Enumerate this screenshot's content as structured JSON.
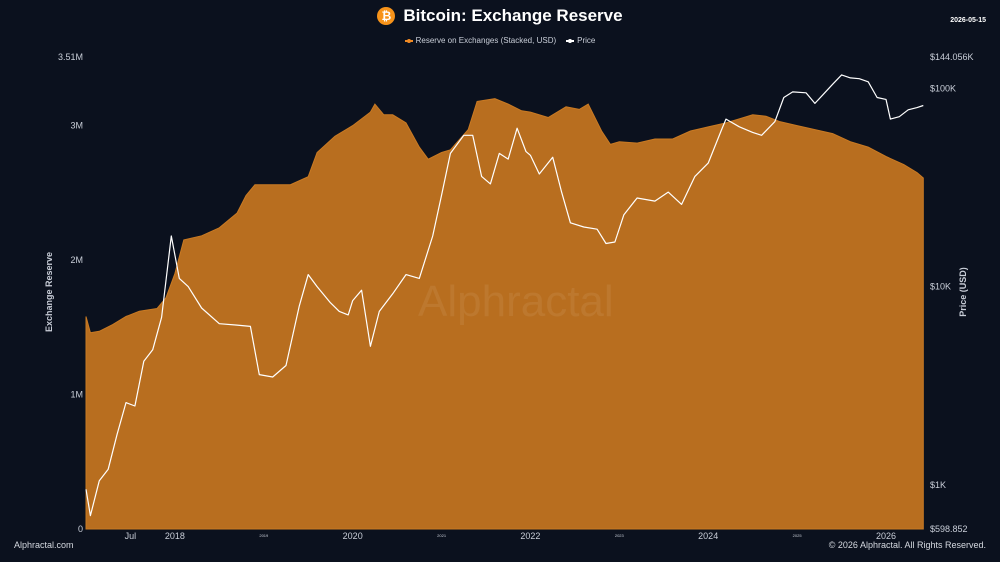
{
  "header": {
    "title": "Bitcoin: Exchange Reserve",
    "date": "2026-05-15",
    "icon": "bitcoin-icon",
    "icon_glyph": "₿"
  },
  "legend": [
    {
      "label": "Reserve on Exchanges (Stacked, USD)",
      "color": "#f08a24"
    },
    {
      "label": "Price",
      "color": "#ffffff"
    }
  ],
  "watermark": "Alphractal",
  "footer": {
    "left": "Alphractal.com",
    "right": "© 2026 Alphractal. All Rights Reserved."
  },
  "chart_data": {
    "type": "area",
    "xlim": [
      2017.0,
      2026.45
    ],
    "x_ticks": [
      {
        "x": 2017.5,
        "label": "Jul"
      },
      {
        "x": 2018.0,
        "label": "2018"
      },
      {
        "x": 2019.0,
        "label": "2019"
      },
      {
        "x": 2020.0,
        "label": "2020"
      },
      {
        "x": 2021.0,
        "label": "2021"
      },
      {
        "x": 2022.0,
        "label": "2022"
      },
      {
        "x": 2023.0,
        "label": "2023"
      },
      {
        "x": 2024.0,
        "label": "2024"
      },
      {
        "x": 2025.0,
        "label": "2025"
      },
      {
        "x": 2026.0,
        "label": "2026"
      }
    ],
    "ylabel_left": "Exchange Reserve",
    "ylim_left": [
      0,
      3510000
    ],
    "left_ticks": [
      {
        "value": 0,
        "label": "0"
      },
      {
        "value": 1000000,
        "label": "1M"
      },
      {
        "value": 2000000,
        "label": "2M"
      },
      {
        "value": 3000000,
        "label": "3M"
      },
      {
        "value": 3510000,
        "label": "3.51M"
      }
    ],
    "ylabel_right": "Price (USD)",
    "right_scale": "log",
    "ylim_right": [
      598.852,
      144056
    ],
    "right_ticks": [
      {
        "value": 598.852,
        "label": "$598.852"
      },
      {
        "value": 1000,
        "label": "$1K"
      },
      {
        "value": 10000,
        "label": "$10K"
      },
      {
        "value": 100000,
        "label": "$100K"
      },
      {
        "value": 144056,
        "label": "$144.056K"
      }
    ],
    "series": [
      {
        "name": "Reserve on Exchanges (Stacked, USD)",
        "axis": "left",
        "color": "#f08a24",
        "points": [
          [
            2017.0,
            1580000
          ],
          [
            2017.05,
            1460000
          ],
          [
            2017.15,
            1470000
          ],
          [
            2017.3,
            1520000
          ],
          [
            2017.45,
            1580000
          ],
          [
            2017.6,
            1620000
          ],
          [
            2017.8,
            1640000
          ],
          [
            2017.9,
            1720000
          ],
          [
            2018.0,
            1900000
          ],
          [
            2018.1,
            2150000
          ],
          [
            2018.3,
            2180000
          ],
          [
            2018.5,
            2240000
          ],
          [
            2018.7,
            2350000
          ],
          [
            2018.8,
            2480000
          ],
          [
            2018.9,
            2560000
          ],
          [
            2019.1,
            2560000
          ],
          [
            2019.3,
            2560000
          ],
          [
            2019.5,
            2620000
          ],
          [
            2019.6,
            2800000
          ],
          [
            2019.8,
            2920000
          ],
          [
            2020.0,
            3000000
          ],
          [
            2020.2,
            3100000
          ],
          [
            2020.25,
            3160000
          ],
          [
            2020.35,
            3080000
          ],
          [
            2020.45,
            3080000
          ],
          [
            2020.6,
            3020000
          ],
          [
            2020.75,
            2840000
          ],
          [
            2020.85,
            2750000
          ],
          [
            2021.0,
            2800000
          ],
          [
            2021.1,
            2820000
          ],
          [
            2021.3,
            2970000
          ],
          [
            2021.4,
            3180000
          ],
          [
            2021.6,
            3200000
          ],
          [
            2021.75,
            3160000
          ],
          [
            2021.9,
            3110000
          ],
          [
            2022.0,
            3100000
          ],
          [
            2022.2,
            3060000
          ],
          [
            2022.4,
            3140000
          ],
          [
            2022.55,
            3120000
          ],
          [
            2022.65,
            3160000
          ],
          [
            2022.8,
            2960000
          ],
          [
            2022.9,
            2860000
          ],
          [
            2023.0,
            2880000
          ],
          [
            2023.2,
            2870000
          ],
          [
            2023.4,
            2900000
          ],
          [
            2023.6,
            2900000
          ],
          [
            2023.8,
            2960000
          ],
          [
            2024.0,
            2990000
          ],
          [
            2024.2,
            3020000
          ],
          [
            2024.35,
            3050000
          ],
          [
            2024.5,
            3080000
          ],
          [
            2024.65,
            3070000
          ],
          [
            2024.8,
            3030000
          ],
          [
            2025.0,
            3000000
          ],
          [
            2025.2,
            2970000
          ],
          [
            2025.4,
            2940000
          ],
          [
            2025.6,
            2880000
          ],
          [
            2025.8,
            2840000
          ],
          [
            2026.0,
            2770000
          ],
          [
            2026.2,
            2710000
          ],
          [
            2026.35,
            2650000
          ],
          [
            2026.42,
            2610000
          ]
        ]
      },
      {
        "name": "Price",
        "axis": "right",
        "color": "#ffffff",
        "points": [
          [
            2017.0,
            950
          ],
          [
            2017.05,
            700
          ],
          [
            2017.15,
            1050
          ],
          [
            2017.25,
            1200
          ],
          [
            2017.35,
            1800
          ],
          [
            2017.45,
            2600
          ],
          [
            2017.55,
            2500
          ],
          [
            2017.65,
            4200
          ],
          [
            2017.75,
            4800
          ],
          [
            2017.85,
            7000
          ],
          [
            2017.96,
            18000
          ],
          [
            2018.05,
            11000
          ],
          [
            2018.15,
            10000
          ],
          [
            2018.3,
            7800
          ],
          [
            2018.5,
            6500
          ],
          [
            2018.7,
            6400
          ],
          [
            2018.85,
            6300
          ],
          [
            2018.95,
            3600
          ],
          [
            2019.1,
            3500
          ],
          [
            2019.25,
            4000
          ],
          [
            2019.4,
            8000
          ],
          [
            2019.5,
            11500
          ],
          [
            2019.6,
            10000
          ],
          [
            2019.75,
            8300
          ],
          [
            2019.85,
            7500
          ],
          [
            2019.95,
            7200
          ],
          [
            2020.0,
            8500
          ],
          [
            2020.1,
            9600
          ],
          [
            2020.2,
            5000
          ],
          [
            2020.3,
            7500
          ],
          [
            2020.45,
            9200
          ],
          [
            2020.6,
            11500
          ],
          [
            2020.75,
            11000
          ],
          [
            2020.9,
            18000
          ],
          [
            2021.0,
            29000
          ],
          [
            2021.1,
            47000
          ],
          [
            2021.25,
            58000
          ],
          [
            2021.35,
            58000
          ],
          [
            2021.45,
            36000
          ],
          [
            2021.55,
            33000
          ],
          [
            2021.65,
            47000
          ],
          [
            2021.75,
            44000
          ],
          [
            2021.85,
            63000
          ],
          [
            2021.95,
            48000
          ],
          [
            2022.0,
            46000
          ],
          [
            2022.1,
            37000
          ],
          [
            2022.25,
            45000
          ],
          [
            2022.35,
            30000
          ],
          [
            2022.45,
            21000
          ],
          [
            2022.6,
            20000
          ],
          [
            2022.75,
            19500
          ],
          [
            2022.85,
            16500
          ],
          [
            2022.95,
            16800
          ],
          [
            2023.05,
            23000
          ],
          [
            2023.2,
            28000
          ],
          [
            2023.4,
            27000
          ],
          [
            2023.55,
            30000
          ],
          [
            2023.7,
            26000
          ],
          [
            2023.85,
            36000
          ],
          [
            2024.0,
            42000
          ],
          [
            2024.15,
            62000
          ],
          [
            2024.2,
            70000
          ],
          [
            2024.35,
            64000
          ],
          [
            2024.5,
            60000
          ],
          [
            2024.6,
            58000
          ],
          [
            2024.75,
            68000
          ],
          [
            2024.85,
            90000
          ],
          [
            2024.95,
            96000
          ],
          [
            2025.1,
            95000
          ],
          [
            2025.2,
            84000
          ],
          [
            2025.3,
            94000
          ],
          [
            2025.4,
            105000
          ],
          [
            2025.5,
            117000
          ],
          [
            2025.6,
            113000
          ],
          [
            2025.7,
            112000
          ],
          [
            2025.8,
            108000
          ],
          [
            2025.9,
            90000
          ],
          [
            2026.0,
            88000
          ],
          [
            2026.05,
            70000
          ],
          [
            2026.15,
            72000
          ],
          [
            2026.25,
            78000
          ],
          [
            2026.35,
            80000
          ],
          [
            2026.42,
            82000
          ]
        ]
      }
    ]
  }
}
